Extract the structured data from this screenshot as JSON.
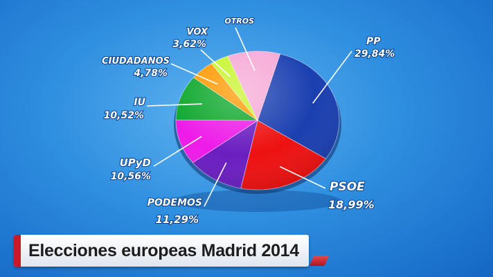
{
  "chart_data": {
    "type": "pie",
    "slices": [
      {
        "label": "PP",
        "value_text": "29,84%",
        "value": 29.84,
        "color": "#1a3fb0"
      },
      {
        "label": "PSOE",
        "value_text": "18,99%",
        "value": 18.99,
        "color": "#ee1111"
      },
      {
        "label": "PODEMOS",
        "value_text": "11,29%",
        "value": 11.29,
        "color": "#6a1ec0"
      },
      {
        "label": "UPyD",
        "value_text": "10,56%",
        "value": 10.56,
        "color": "#ee1be8"
      },
      {
        "label": "IU",
        "value_text": "10,52%",
        "value": 10.52,
        "color": "#0fa82e"
      },
      {
        "label": "CIUDADANOS",
        "value_text": "4,78%",
        "value": 4.78,
        "color": "#ff9900"
      },
      {
        "label": "VOX",
        "value_text": "3,62%",
        "value": 3.62,
        "color": "#c6f52a"
      },
      {
        "label": "OTROS",
        "value_text": "",
        "value": 10.4,
        "color": "#f6a9d6"
      }
    ]
  },
  "caption": {
    "title": "Elecciones europeas Madrid 2014"
  }
}
